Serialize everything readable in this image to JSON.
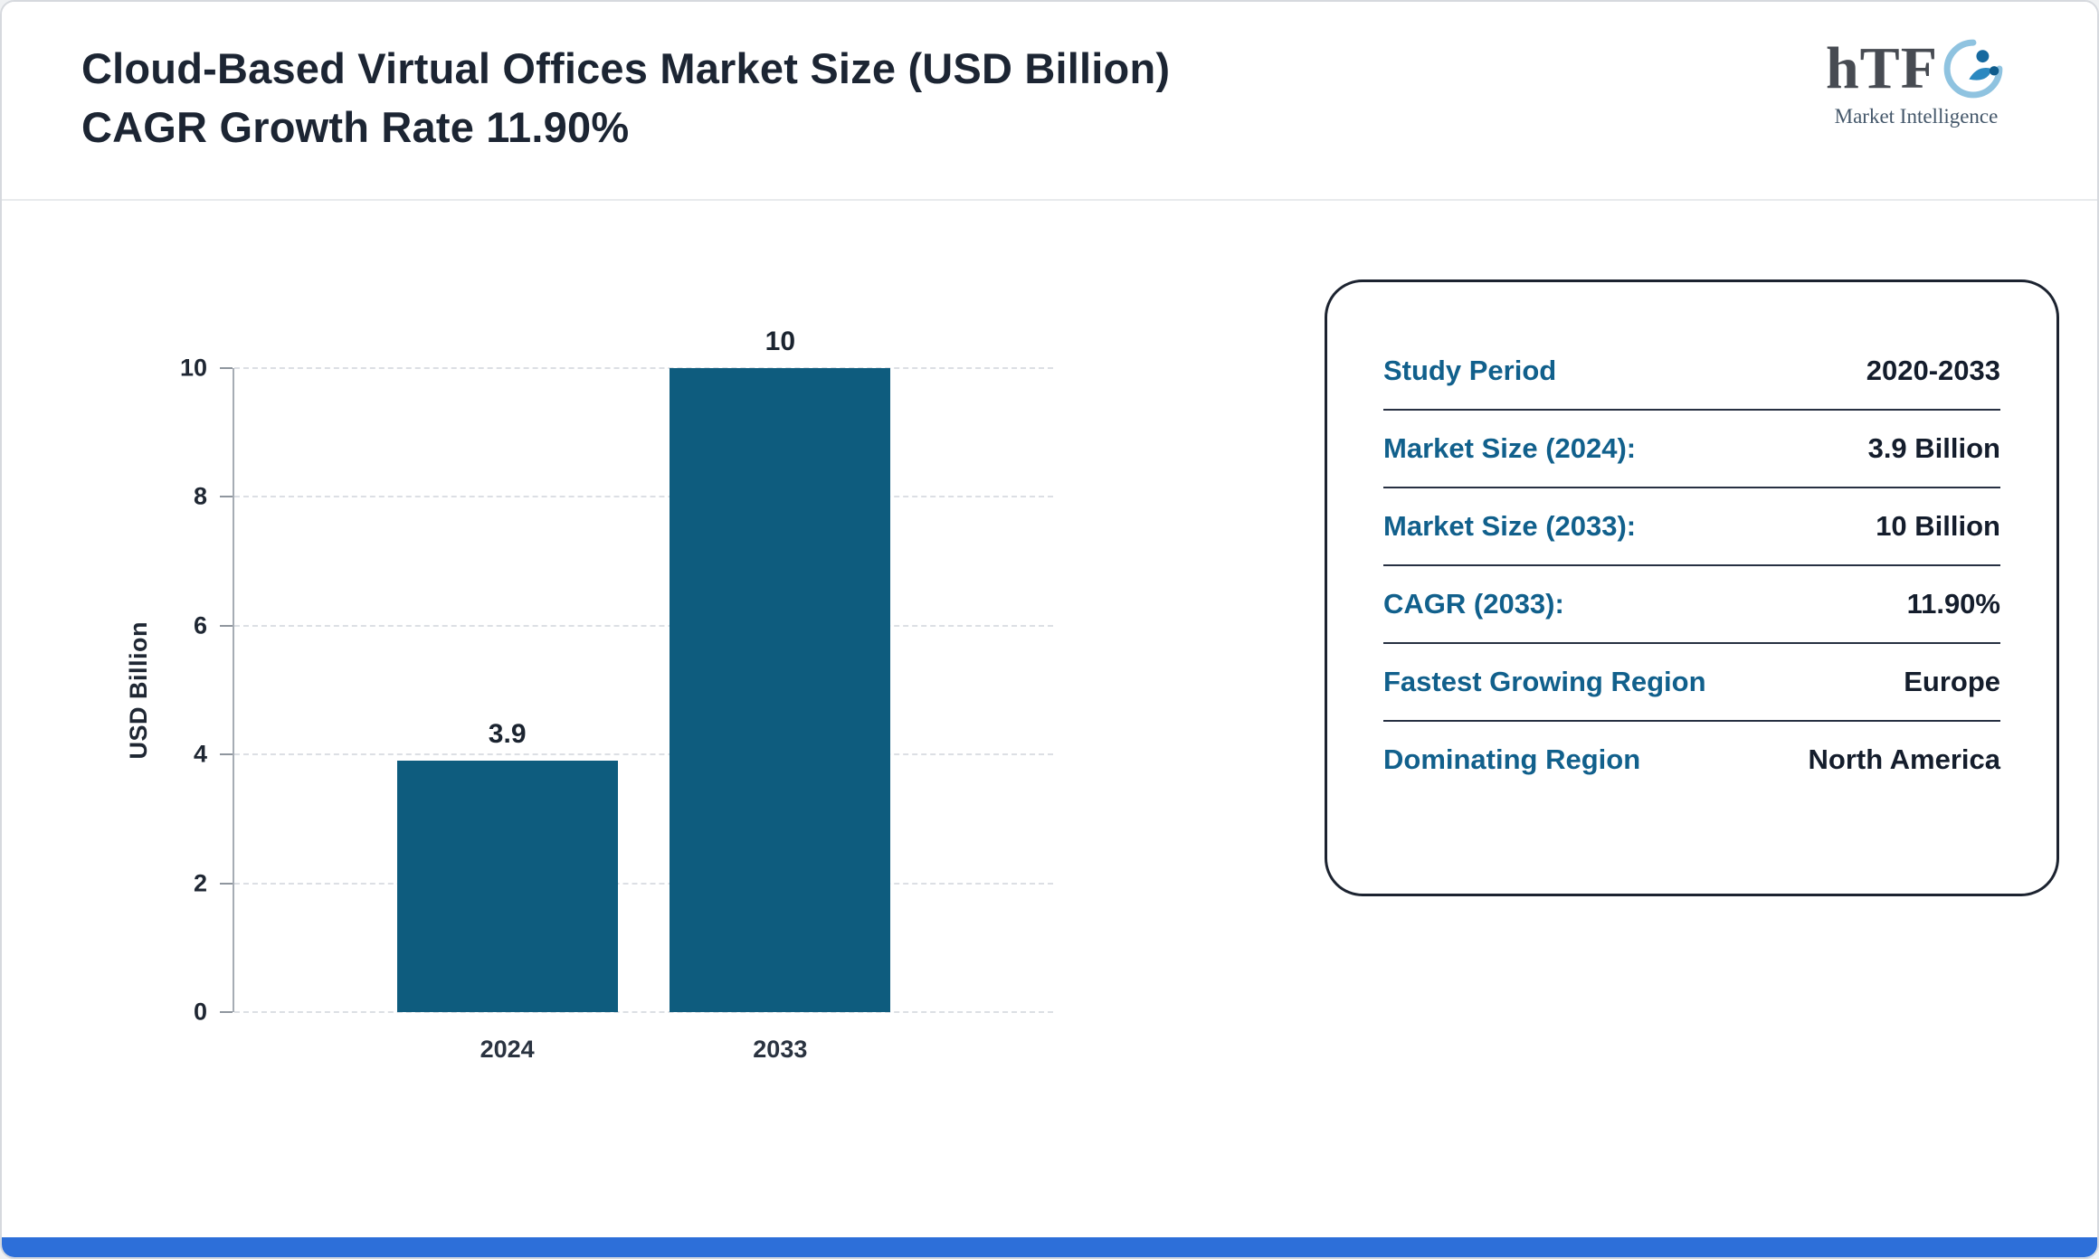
{
  "header": {
    "title": "Cloud-Based Virtual Offices Market Size (USD Billion) CAGR Growth Rate 11.90%",
    "logo": {
      "text": "hTF",
      "subtext": "Market Intelligence",
      "icon": "swoosh-people-icon"
    }
  },
  "chart_data": {
    "type": "bar",
    "categories": [
      "2024",
      "2033"
    ],
    "values": [
      3.9,
      10
    ],
    "data_labels": [
      "3.9",
      "10"
    ],
    "title": "Cloud-Based Virtual Offices Market Size (USD Billion) CAGR Growth Rate 11.90%",
    "xlabel": "",
    "ylabel": "USD Billion",
    "ylim": [
      0,
      10
    ],
    "yticks": [
      0,
      2,
      4,
      6,
      8,
      10
    ],
    "grid": "dashed horizontal",
    "legend": "none",
    "bar_color": "#0e5c7e"
  },
  "info_card": {
    "rows": [
      {
        "label": "Study Period",
        "value": "2020-2033"
      },
      {
        "label": "Market Size (2024):",
        "value": "3.9 Billion"
      },
      {
        "label": "Market Size (2033):",
        "value": "10 Billion"
      },
      {
        "label": "CAGR (2033):",
        "value": "11.90%"
      },
      {
        "label": "Fastest Growing Region",
        "value": "Europe"
      },
      {
        "label": "Dominating Region",
        "value": "North America"
      }
    ]
  },
  "colors": {
    "bar": "#0e5c7e",
    "info_label": "#11608c",
    "info_value": "#141d2c",
    "title_text": "#1c2533",
    "bottom_bar": "#2d6fd9",
    "gridline": "#dcdfe4"
  }
}
